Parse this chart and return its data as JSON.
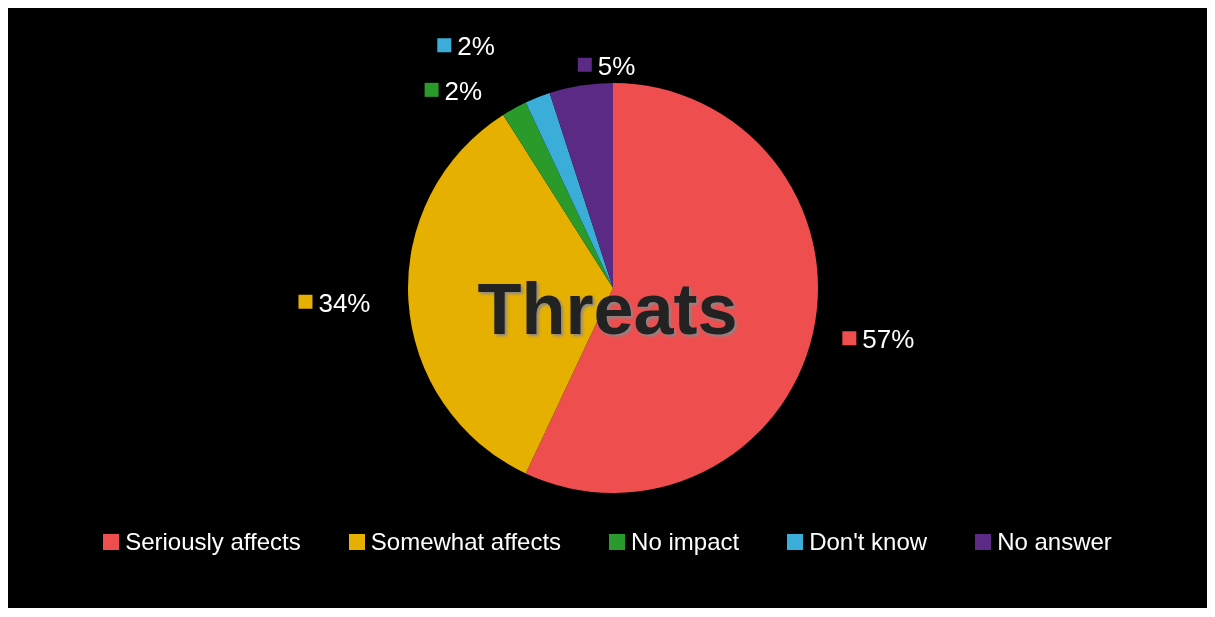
{
  "chart_data": {
    "type": "pie",
    "title": "Threats",
    "categories": [
      "Seriously affects",
      "Somewhat affects",
      "No impact",
      "Don't know",
      "No answer"
    ],
    "values": [
      57,
      34,
      2,
      2,
      5
    ],
    "colors": [
      "#ef4e4e",
      "#e6b000",
      "#2a9a2a",
      "#3aaed8",
      "#5b2a84"
    ],
    "value_labels": [
      "57%",
      "34%",
      "2%",
      "2%",
      "5%"
    ],
    "legend": "bottom"
  }
}
